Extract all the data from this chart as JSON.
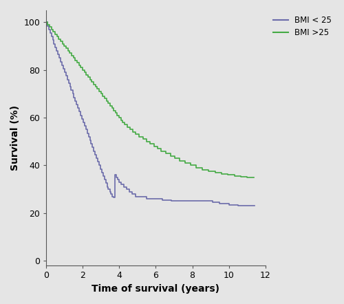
{
  "title": "",
  "xlabel": "Time of survival (years)",
  "ylabel": "Survival (%)",
  "xlim": [
    0,
    12
  ],
  "ylim": [
    -2,
    105
  ],
  "xticks": [
    0,
    2,
    4,
    6,
    8,
    10,
    12
  ],
  "yticks": [
    0,
    20,
    40,
    60,
    80,
    100
  ],
  "background_color": "#e5e5e5",
  "bmi_low_color": "#6b6baa",
  "bmi_high_color": "#44aa44",
  "legend_labels": [
    "BMI < 25",
    "BMI >25"
  ],
  "bmi_low_x": [
    0.0,
    0.08,
    0.15,
    0.22,
    0.3,
    0.37,
    0.44,
    0.51,
    0.59,
    0.66,
    0.73,
    0.8,
    0.88,
    0.95,
    1.02,
    1.09,
    1.17,
    1.24,
    1.31,
    1.38,
    1.46,
    1.53,
    1.6,
    1.67,
    1.75,
    1.82,
    1.89,
    1.96,
    2.04,
    2.11,
    2.18,
    2.25,
    2.33,
    2.4,
    2.47,
    2.54,
    2.62,
    2.69,
    2.76,
    2.83,
    2.91,
    2.98,
    3.05,
    3.12,
    3.2,
    3.27,
    3.34,
    3.41,
    3.49,
    3.56,
    3.63,
    3.7,
    3.78,
    3.85,
    3.92,
    3.99,
    4.1,
    4.25,
    4.4,
    4.55,
    4.7,
    4.9,
    5.1,
    5.3,
    5.5,
    5.7,
    5.9,
    6.1,
    6.35,
    6.6,
    6.85,
    7.1,
    7.4,
    7.7,
    8.05,
    8.4,
    8.75,
    9.1,
    9.5,
    10.0,
    10.5,
    11.0,
    11.4
  ],
  "bmi_low_y": [
    100,
    98.5,
    97,
    95.5,
    94,
    92.5,
    91,
    89.5,
    88,
    86.5,
    85,
    83.5,
    82,
    80.5,
    79,
    77.5,
    76,
    74.5,
    73,
    71.5,
    70,
    68.5,
    67,
    65.5,
    64,
    62.5,
    61,
    59.5,
    58,
    56.5,
    55,
    53.5,
    52,
    50.5,
    49,
    47.5,
    46,
    44.5,
    43,
    41.5,
    40,
    38.5,
    37,
    35.5,
    34,
    32.5,
    31,
    30,
    29,
    28,
    27,
    26.5,
    36,
    35,
    34,
    33,
    32,
    31,
    30,
    29,
    28,
    27,
    27,
    27,
    26,
    26,
    26,
    26,
    25.5,
    25.5,
    25,
    25,
    25,
    25,
    25,
    25,
    25,
    24.5,
    24,
    23.5,
    23,
    23,
    23
  ],
  "bmi_high_x": [
    0.0,
    0.1,
    0.2,
    0.3,
    0.4,
    0.5,
    0.6,
    0.7,
    0.8,
    0.9,
    1.0,
    1.1,
    1.2,
    1.3,
    1.4,
    1.5,
    1.6,
    1.7,
    1.8,
    1.9,
    2.0,
    2.1,
    2.2,
    2.3,
    2.4,
    2.5,
    2.6,
    2.7,
    2.8,
    2.9,
    3.0,
    3.1,
    3.2,
    3.3,
    3.4,
    3.5,
    3.6,
    3.7,
    3.8,
    3.9,
    4.0,
    4.1,
    4.2,
    4.3,
    4.45,
    4.6,
    4.75,
    4.9,
    5.1,
    5.3,
    5.5,
    5.7,
    5.9,
    6.1,
    6.3,
    6.55,
    6.8,
    7.05,
    7.3,
    7.6,
    7.9,
    8.2,
    8.55,
    8.9,
    9.25,
    9.6,
    9.95,
    10.3,
    10.65,
    11.0,
    11.35
  ],
  "bmi_high_y": [
    100,
    99,
    98,
    97,
    96,
    95,
    94,
    93,
    92,
    91,
    90,
    89,
    88,
    87,
    86,
    85,
    84,
    83,
    82,
    81,
    80,
    79,
    78,
    77,
    76,
    75,
    74,
    73,
    72,
    71,
    70,
    69,
    68,
    67,
    66,
    65,
    64,
    63,
    62,
    61,
    60,
    59,
    58,
    57,
    56,
    55,
    54,
    53,
    52,
    51,
    50,
    49,
    48,
    47,
    46,
    45,
    44,
    43,
    42,
    41,
    40,
    39,
    38,
    37.5,
    37,
    36.5,
    36,
    35.5,
    35.2,
    35,
    35
  ]
}
